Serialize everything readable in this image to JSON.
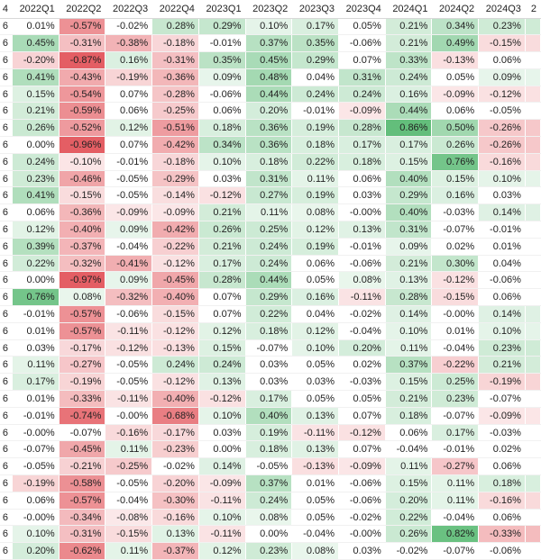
{
  "colors": {
    "neg_strong": "#e45e64",
    "pos_strong": "#63be7b",
    "neutral": "#ffffff"
  },
  "left_edge_label": "4",
  "header_cols": [
    "2022Q1",
    "2022Q2",
    "2022Q3",
    "2022Q4",
    "2023Q1",
    "2023Q2",
    "2023Q3",
    "2023Q4",
    "2024Q1",
    "2024Q2",
    "2024Q3"
  ],
  "last_col_header": "2",
  "rows": [
    {
      "l": "6",
      "v": [
        "0.01%",
        "-0.57%",
        "-0.02%",
        "0.28%",
        "0.29%",
        "0.10%",
        "0.17%",
        "0.05%",
        "0.21%",
        "0.34%",
        "0.23%"
      ]
    },
    {
      "l": "6",
      "v": [
        "0.45%",
        "-0.31%",
        "-0.38%",
        "-0.18%",
        "-0.01%",
        "0.37%",
        "0.35%",
        "-0.06%",
        "0.21%",
        "0.49%",
        "-0.15%"
      ]
    },
    {
      "l": "6",
      "v": [
        "-0.20%",
        "-0.87%",
        "0.16%",
        "-0.31%",
        "0.35%",
        "0.45%",
        "0.29%",
        "0.07%",
        "0.33%",
        "-0.13%",
        "0.06%"
      ]
    },
    {
      "l": "6",
      "v": [
        "0.41%",
        "-0.43%",
        "-0.19%",
        "-0.36%",
        "0.09%",
        "0.48%",
        "0.04%",
        "0.31%",
        "0.24%",
        "0.05%",
        "0.09%"
      ]
    },
    {
      "l": "6",
      "v": [
        "0.15%",
        "-0.54%",
        "0.07%",
        "-0.28%",
        "-0.06%",
        "0.44%",
        "0.24%",
        "0.24%",
        "0.16%",
        "-0.09%",
        "-0.12%"
      ]
    },
    {
      "l": "6",
      "v": [
        "0.21%",
        "-0.59%",
        "0.06%",
        "-0.25%",
        "0.06%",
        "0.20%",
        "-0.01%",
        "-0.09%",
        "0.44%",
        "0.06%",
        "-0.05%"
      ]
    },
    {
      "l": "6",
      "v": [
        "0.26%",
        "-0.52%",
        "0.12%",
        "-0.51%",
        "0.18%",
        "0.36%",
        "0.19%",
        "0.28%",
        "0.86%",
        "0.50%",
        "-0.26%"
      ]
    },
    {
      "l": "6",
      "v": [
        "0.00%",
        "-0.96%",
        "0.07%",
        "-0.42%",
        "0.34%",
        "0.36%",
        "0.18%",
        "0.17%",
        "0.17%",
        "0.26%",
        "-0.26%"
      ]
    },
    {
      "l": "6",
      "v": [
        "0.24%",
        "-0.10%",
        "-0.01%",
        "-0.18%",
        "0.10%",
        "0.18%",
        "0.22%",
        "0.18%",
        "0.15%",
        "0.76%",
        "-0.16%"
      ]
    },
    {
      "l": "6",
      "v": [
        "0.23%",
        "-0.46%",
        "-0.05%",
        "-0.29%",
        "0.03%",
        "0.31%",
        "0.11%",
        "0.06%",
        "0.40%",
        "0.15%",
        "0.10%"
      ]
    },
    {
      "l": "6",
      "v": [
        "0.41%",
        "-0.15%",
        "-0.05%",
        "-0.14%",
        "-0.12%",
        "0.27%",
        "0.19%",
        "0.03%",
        "0.29%",
        "0.16%",
        "0.03%"
      ]
    },
    {
      "l": "6",
      "v": [
        "0.06%",
        "-0.36%",
        "-0.09%",
        "-0.09%",
        "0.21%",
        "0.11%",
        "0.08%",
        "-0.00%",
        "0.40%",
        "-0.03%",
        "0.14%"
      ]
    },
    {
      "l": "6",
      "v": [
        "0.12%",
        "-0.40%",
        "0.09%",
        "-0.42%",
        "0.26%",
        "0.25%",
        "0.12%",
        "0.13%",
        "0.31%",
        "-0.07%",
        "-0.01%"
      ]
    },
    {
      "l": "6",
      "v": [
        "0.39%",
        "-0.37%",
        "-0.04%",
        "-0.22%",
        "0.21%",
        "0.24%",
        "0.19%",
        "-0.01%",
        "0.09%",
        "0.02%",
        "0.01%"
      ]
    },
    {
      "l": "6",
      "v": [
        "0.22%",
        "-0.32%",
        "-0.41%",
        "-0.12%",
        "0.17%",
        "0.24%",
        "0.06%",
        "-0.06%",
        "0.21%",
        "0.30%",
        "0.04%"
      ]
    },
    {
      "l": "6",
      "v": [
        "0.00%",
        "-0.97%",
        "0.09%",
        "-0.45%",
        "0.28%",
        "0.44%",
        "0.05%",
        "0.08%",
        "0.13%",
        "-0.12%",
        "-0.06%"
      ]
    },
    {
      "l": "6",
      "v": [
        "0.76%",
        "0.08%",
        "-0.32%",
        "-0.40%",
        "0.07%",
        "0.29%",
        "0.16%",
        "-0.11%",
        "0.28%",
        "-0.15%",
        "0.06%"
      ]
    },
    {
      "l": "6",
      "v": [
        "-0.01%",
        "-0.57%",
        "-0.06%",
        "-0.15%",
        "0.07%",
        "0.22%",
        "0.04%",
        "-0.02%",
        "0.14%",
        "-0.00%",
        "0.14%"
      ]
    },
    {
      "l": "6",
      "v": [
        "0.01%",
        "-0.57%",
        "-0.11%",
        "-0.12%",
        "0.12%",
        "0.18%",
        "0.12%",
        "-0.04%",
        "0.10%",
        "0.01%",
        "0.10%"
      ]
    },
    {
      "l": "6",
      "v": [
        "0.03%",
        "-0.17%",
        "-0.12%",
        "-0.13%",
        "0.15%",
        "-0.07%",
        "0.10%",
        "0.20%",
        "0.11%",
        "-0.04%",
        "0.23%"
      ]
    },
    {
      "l": "6",
      "v": [
        "0.11%",
        "-0.27%",
        "-0.05%",
        "0.24%",
        "0.24%",
        "0.03%",
        "0.05%",
        "0.02%",
        "0.37%",
        "-0.22%",
        "0.21%"
      ]
    },
    {
      "l": "6",
      "v": [
        "0.17%",
        "-0.19%",
        "-0.05%",
        "-0.12%",
        "0.13%",
        "0.03%",
        "0.03%",
        "-0.03%",
        "0.15%",
        "0.25%",
        "-0.19%"
      ]
    },
    {
      "l": "6",
      "v": [
        "0.01%",
        "-0.33%",
        "-0.11%",
        "-0.40%",
        "-0.12%",
        "0.17%",
        "0.05%",
        "0.05%",
        "0.21%",
        "0.23%",
        "-0.07%"
      ]
    },
    {
      "l": "6",
      "v": [
        "-0.01%",
        "-0.74%",
        "-0.00%",
        "-0.68%",
        "0.10%",
        "0.40%",
        "0.13%",
        "0.07%",
        "0.18%",
        "-0.07%",
        "-0.09%"
      ]
    },
    {
      "l": "6",
      "v": [
        "-0.00%",
        "-0.07%",
        "-0.16%",
        "-0.17%",
        "0.03%",
        "0.19%",
        "-0.11%",
        "-0.12%",
        "0.06%",
        "0.17%",
        "-0.03%"
      ]
    },
    {
      "l": "6",
      "v": [
        "-0.07%",
        "-0.45%",
        "0.11%",
        "-0.23%",
        "0.00%",
        "0.18%",
        "0.13%",
        "0.07%",
        "-0.04%",
        "-0.01%",
        "0.02%"
      ]
    },
    {
      "l": "6",
      "v": [
        "-0.05%",
        "-0.21%",
        "-0.25%",
        "-0.02%",
        "0.14%",
        "-0.05%",
        "-0.13%",
        "-0.09%",
        "0.11%",
        "-0.27%",
        "0.06%"
      ]
    },
    {
      "l": "6",
      "v": [
        "-0.19%",
        "-0.58%",
        "-0.05%",
        "-0.20%",
        "-0.09%",
        "0.37%",
        "0.01%",
        "-0.06%",
        "0.15%",
        "0.11%",
        "0.18%"
      ]
    },
    {
      "l": "6",
      "v": [
        "0.06%",
        "-0.57%",
        "-0.04%",
        "-0.30%",
        "-0.11%",
        "0.24%",
        "0.05%",
        "-0.06%",
        "0.20%",
        "0.11%",
        "-0.16%"
      ]
    },
    {
      "l": "6",
      "v": [
        "-0.00%",
        "-0.34%",
        "-0.08%",
        "-0.16%",
        "0.10%",
        "0.08%",
        "0.05%",
        "-0.02%",
        "0.22%",
        "-0.04%",
        "0.06%"
      ]
    },
    {
      "l": "6",
      "v": [
        "0.10%",
        "-0.31%",
        "-0.15%",
        "0.13%",
        "-0.11%",
        "0.00%",
        "-0.04%",
        "-0.00%",
        "0.26%",
        "0.82%",
        "-0.33%"
      ]
    },
    {
      "l": "6",
      "v": [
        "0.20%",
        "-0.62%",
        "0.11%",
        "-0.37%",
        "0.12%",
        "0.23%",
        "0.08%",
        "0.03%",
        "-0.02%",
        "-0.07%",
        "-0.06%"
      ]
    }
  ]
}
